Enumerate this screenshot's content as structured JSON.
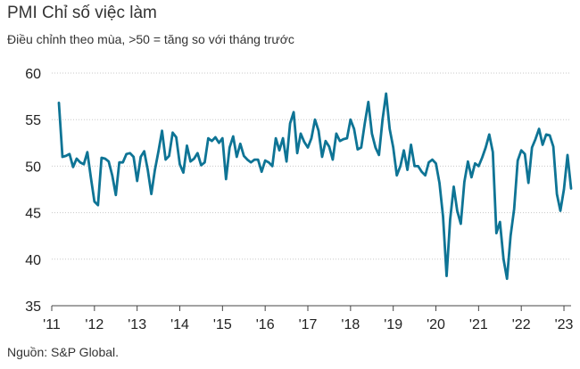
{
  "header": {
    "title": "PMI Chỉ số việc làm",
    "subtitle": "Điều chỉnh theo mùa, >50 = tăng so với tháng trước"
  },
  "footer": {
    "source": "Nguồn: S&P Global."
  },
  "colors": {
    "line": "#0e7495",
    "axis": "#444444",
    "grid": "#c8c8c8",
    "text": "#222222"
  },
  "chart_data": {
    "type": "line",
    "title": "PMI Chỉ số việc làm",
    "subtitle": "Điều chỉnh theo mùa, >50 = tăng so với tháng trước",
    "ylim": [
      35,
      60
    ],
    "yticks": [
      35,
      40,
      45,
      50,
      55,
      60
    ],
    "xlim": [
      "2011-01",
      "2023-03"
    ],
    "xticks": [
      {
        "label": "'11",
        "date": "2011-01"
      },
      {
        "label": "'12",
        "date": "2012-01"
      },
      {
        "label": "'13",
        "date": "2013-01"
      },
      {
        "label": "'14",
        "date": "2014-01"
      },
      {
        "label": "'15",
        "date": "2015-01"
      },
      {
        "label": "'16",
        "date": "2016-01"
      },
      {
        "label": "'17",
        "date": "2017-01"
      },
      {
        "label": "'18",
        "date": "2018-01"
      },
      {
        "label": "'19",
        "date": "2019-01"
      },
      {
        "label": "'20",
        "date": "2020-01"
      },
      {
        "label": "'21",
        "date": "2021-01"
      },
      {
        "label": "'22",
        "date": "2022-01"
      },
      {
        "label": "'23",
        "date": "2023-01"
      }
    ],
    "grid": "horizontal",
    "legend": "none",
    "series": [
      {
        "x": [
          "2011-03",
          "2011-04",
          "2011-05",
          "2011-06",
          "2011-07",
          "2011-08",
          "2011-09",
          "2011-10",
          "2011-11",
          "2011-12",
          "2012-01",
          "2012-02",
          "2012-03",
          "2012-04",
          "2012-05",
          "2012-06",
          "2012-07",
          "2012-08",
          "2012-09",
          "2012-10",
          "2012-11",
          "2012-12",
          "2013-01",
          "2013-02",
          "2013-03",
          "2013-04",
          "2013-05",
          "2013-06",
          "2013-07",
          "2013-08",
          "2013-09",
          "2013-10",
          "2013-11",
          "2013-12",
          "2014-01",
          "2014-02",
          "2014-03",
          "2014-04",
          "2014-05",
          "2014-06",
          "2014-07",
          "2014-08",
          "2014-09",
          "2014-10",
          "2014-11",
          "2014-12",
          "2015-01",
          "2015-02",
          "2015-03",
          "2015-04",
          "2015-05",
          "2015-06",
          "2015-07",
          "2015-08",
          "2015-09",
          "2015-10",
          "2015-11",
          "2015-12",
          "2016-01",
          "2016-02",
          "2016-03",
          "2016-04",
          "2016-05",
          "2016-06",
          "2016-07",
          "2016-08",
          "2016-09",
          "2016-10",
          "2016-11",
          "2016-12",
          "2017-01",
          "2017-02",
          "2017-03",
          "2017-04",
          "2017-05",
          "2017-06",
          "2017-07",
          "2017-08",
          "2017-09",
          "2017-10",
          "2017-11",
          "2017-12",
          "2018-01",
          "2018-02",
          "2018-03",
          "2018-04",
          "2018-05",
          "2018-06",
          "2018-07",
          "2018-08",
          "2018-09",
          "2018-10",
          "2018-11",
          "2018-12",
          "2019-01",
          "2019-02",
          "2019-03",
          "2019-04",
          "2019-05",
          "2019-06",
          "2019-07",
          "2019-08",
          "2019-09",
          "2019-10",
          "2019-11",
          "2019-12",
          "2020-01",
          "2020-02",
          "2020-03",
          "2020-04",
          "2020-05",
          "2020-06",
          "2020-07",
          "2020-08",
          "2020-09",
          "2020-10",
          "2020-11",
          "2020-12",
          "2021-01",
          "2021-02",
          "2021-03",
          "2021-04",
          "2021-05",
          "2021-06",
          "2021-07",
          "2021-08",
          "2021-09",
          "2021-10",
          "2021-11",
          "2021-12",
          "2022-01",
          "2022-02",
          "2022-03",
          "2022-04",
          "2022-05",
          "2022-06",
          "2022-07",
          "2022-08",
          "2022-09",
          "2022-10",
          "2022-11",
          "2022-12",
          "2023-01",
          "2023-02",
          "2023-03"
        ],
        "values": [
          56.8,
          51.0,
          51.1,
          51.3,
          49.9,
          50.8,
          50.4,
          50.2,
          51.5,
          48.8,
          46.2,
          45.8,
          50.9,
          50.8,
          50.5,
          49.0,
          46.9,
          50.4,
          50.4,
          51.3,
          51.4,
          51.0,
          48.4,
          51.0,
          51.6,
          49.6,
          47.0,
          49.6,
          51.6,
          53.8,
          50.7,
          51.1,
          53.6,
          53.1,
          50.2,
          49.3,
          52.2,
          50.5,
          50.8,
          51.4,
          50.1,
          50.4,
          53.0,
          52.7,
          53.1,
          52.5,
          53.0,
          48.6,
          52.0,
          53.2,
          51.0,
          52.4,
          51.1,
          50.7,
          50.4,
          50.7,
          50.7,
          49.4,
          50.6,
          50.4,
          50.0,
          53.0,
          51.7,
          53.0,
          50.5,
          54.6,
          55.8,
          51.4,
          53.5,
          52.6,
          52.0,
          53.0,
          55.0,
          53.8,
          51.0,
          52.7,
          52.1,
          50.7,
          53.5,
          52.7,
          52.9,
          53.0,
          55.0,
          54.0,
          51.8,
          52.0,
          54.6,
          56.9,
          53.5,
          52.0,
          51.2,
          55.0,
          57.8,
          54.0,
          52.0,
          49.0,
          50.0,
          51.7,
          49.6,
          52.3,
          50.0,
          50.0,
          49.4,
          49.0,
          50.4,
          50.7,
          50.3,
          48.2,
          44.6,
          38.2,
          44.3,
          47.8,
          45.2,
          43.8,
          48.3,
          50.5,
          48.8,
          50.3,
          50.0,
          50.9,
          52.0,
          53.4,
          51.5,
          42.8,
          44.0,
          40.0,
          37.9,
          42.5,
          45.4,
          50.6,
          51.7,
          51.3,
          48.2,
          52.0,
          52.9,
          54.0,
          52.3,
          53.4,
          53.3,
          52.1,
          47.0,
          45.2,
          47.5,
          51.2,
          47.6
        ]
      }
    ]
  }
}
